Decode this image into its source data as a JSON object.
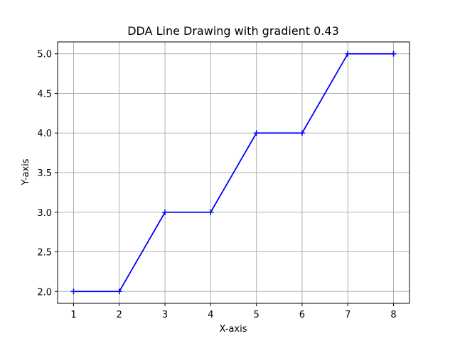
{
  "chart_data": {
    "type": "line",
    "title": "DDA Line Drawing with gradient 0.43",
    "xlabel": "X-axis",
    "ylabel": "Y-axis",
    "x_ticks": [
      "1",
      "2",
      "3",
      "4",
      "5",
      "6",
      "7",
      "8"
    ],
    "y_ticks": [
      "2.0",
      "2.5",
      "3.0",
      "3.5",
      "4.0",
      "4.5",
      "5.0"
    ],
    "xlim": [
      0.65,
      8.35
    ],
    "ylim": [
      1.85,
      5.15
    ],
    "grid": true,
    "legend": "none",
    "series": [
      {
        "x": [
          1,
          2,
          3,
          4,
          5,
          6,
          7,
          8
        ],
        "y": [
          2,
          2,
          3,
          3,
          4,
          4,
          5,
          5
        ],
        "color": "#0000ff",
        "marker": "plus"
      }
    ]
  },
  "colors": {
    "line": "#0000ff",
    "grid": "#b0b0b0",
    "axes": "#000000",
    "background": "#ffffff"
  }
}
